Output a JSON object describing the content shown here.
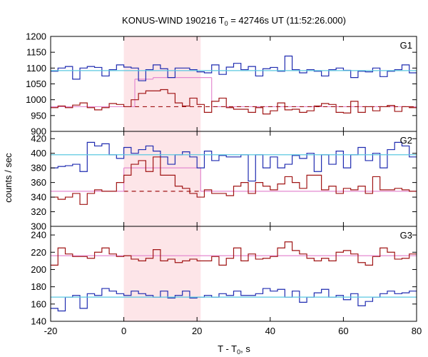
{
  "chart_data": {
    "type": "line",
    "title_main": "KONUS-WIND 190216 T",
    "title_sub": "0",
    "title_rest": " = 42746s UT (11:52:26.000)",
    "xlabel_main": "T - T",
    "xlabel_sub": "0",
    "xlabel_rest": ", s",
    "ylabel": "counts / sec",
    "xlim": [
      -20,
      80
    ],
    "x_ticks": [
      -20,
      0,
      20,
      40,
      60,
      80
    ],
    "x_tick_labels": [
      "-20",
      "0",
      "20",
      "40",
      "60",
      "80"
    ],
    "highlight_interval": [
      0,
      21
    ],
    "colors": {
      "high_channel": "#1f2bb0",
      "low_channel": "#a01515",
      "fit": "#5bc8e0",
      "model": "#e48ad0",
      "highlight": "#fde5e8"
    },
    "panels": [
      {
        "label": "G1",
        "ylim": [
          900,
          1200
        ],
        "y_ticks": [
          900,
          950,
          1000,
          1050,
          1100,
          1150,
          1200
        ],
        "y_tick_labels": [
          "900",
          "950",
          "1000",
          "1050",
          "1100",
          "1150",
          "1200"
        ],
        "series": [
          {
            "role": "high",
            "step": 2.0,
            "x0": -20,
            "values": [
              1090,
              1100,
              1105,
              1065,
              1100,
              1105,
              1102,
              1075,
              1095,
              1110,
              1103,
              1100,
              1060,
              1095,
              1110,
              1098,
              1070,
              1100,
              1100,
              1095,
              1088,
              1085,
              1110,
              1080,
              1103,
              1115,
              1095,
              1105,
              1075,
              1098,
              1102,
              1090,
              1138,
              1095,
              1085,
              1095,
              1090,
              1075,
              1095,
              1100,
              1093,
              1070,
              1090,
              1088,
              1100,
              1073,
              1090,
              1095,
              1110,
              1085
            ]
          },
          {
            "role": "low",
            "step": 2.0,
            "x0": -20,
            "values": [
              975,
              980,
              975,
              983,
              990,
              975,
              968,
              975,
              988,
              985,
              978,
              1000,
              1020,
              1028,
              1028,
              1032,
              1020,
              990,
              980,
              1005,
              985,
              960,
              995,
              1005,
              975,
              970,
              970,
              960,
              975,
              955,
              965,
              990,
              968,
              970,
              960,
              965,
              980,
              988,
              985,
              960,
              958,
              995,
              960,
              978,
              965,
              978,
              982,
              963,
              978,
              975
            ]
          },
          {
            "role": "fit",
            "x": [
              -20,
              80
            ],
            "values": [
              1092,
              1092
            ]
          }
        ],
        "model_levels": [
          {
            "x": [
              -20,
              3
            ],
            "value": 978,
            "style": "solid"
          },
          {
            "x": [
              3,
              8
            ],
            "value": 1065,
            "style": "solid"
          },
          {
            "x": [
              8,
              24
            ],
            "value": 1070,
            "style": "solid"
          },
          {
            "x": [
              24,
              80
            ],
            "value": 978,
            "style": "solid"
          },
          {
            "x": [
              3,
              80
            ],
            "value": 978,
            "style": "dashed"
          }
        ]
      },
      {
        "label": "G2",
        "ylim": [
          300,
          430
        ],
        "y_ticks": [
          300,
          320,
          340,
          360,
          380,
          400,
          420
        ],
        "y_tick_labels": [
          "300",
          "320",
          "340",
          "360",
          "380",
          "400",
          "420"
        ],
        "series": [
          {
            "role": "high",
            "step": 2.0,
            "x0": -20,
            "values": [
              380,
              382,
              383,
              385,
              375,
              415,
              410,
              413,
              398,
              393,
              408,
              400,
              405,
              410,
              403,
              395,
              385,
              398,
              402,
              395,
              380,
              403,
              390,
              397,
              395,
              395,
              398,
              362,
              398,
              380,
              395,
              380,
              385,
              397,
              393,
              400,
              375,
              398,
              385,
              403,
              380,
              398,
              408,
              390,
              400,
              380,
              405,
              415,
              410,
              395
            ]
          },
          {
            "role": "low",
            "step": 2.0,
            "x0": -20,
            "values": [
              340,
              337,
              340,
              345,
              330,
              345,
              350,
              348,
              348,
              360,
              370,
              385,
              390,
              375,
              395,
              370,
              370,
              355,
              352,
              345,
              340,
              350,
              345,
              345,
              342,
              355,
              360,
              345,
              360,
              355,
              350,
              358,
              368,
              360,
              352,
              370,
              370,
              350,
              355,
              345,
              352,
              350,
              355,
              345,
              368,
              350,
              350,
              352,
              350,
              348
            ]
          },
          {
            "role": "fit",
            "x": [
              -20,
              80
            ],
            "values": [
              398,
              398
            ]
          }
        ],
        "model_levels": [
          {
            "x": [
              -20,
              0
            ],
            "value": 348,
            "style": "solid"
          },
          {
            "x": [
              0,
              21
            ],
            "value": 380,
            "style": "solid"
          },
          {
            "x": [
              21,
              80
            ],
            "value": 348,
            "style": "solid"
          },
          {
            "x": [
              0,
              21
            ],
            "value": 348,
            "style": "dashed"
          }
        ]
      },
      {
        "label": "G3",
        "ylim": [
          140,
          250
        ],
        "y_ticks": [
          140,
          160,
          180,
          200,
          220,
          240
        ],
        "y_tick_labels": [
          "140",
          "160",
          "180",
          "200",
          "220",
          "240"
        ],
        "series": [
          {
            "role": "high",
            "step": 2.0,
            "x0": -20,
            "values": [
              155,
              152,
              168,
              170,
              155,
              172,
              170,
              178,
              175,
              172,
              170,
              175,
              172,
              170,
              168,
              175,
              167,
              170,
              175,
              167,
              168,
              170,
              168,
              172,
              170,
              175,
              170,
              170,
              172,
              178,
              175,
              177,
              168,
              175,
              162,
              168,
              173,
              177,
              168,
              170,
              165,
              172,
              158,
              163,
              168,
              172,
              175,
              172,
              173,
              175
            ]
          },
          {
            "role": "low",
            "step": 2.0,
            "x0": -20,
            "values": [
              205,
              225,
              218,
              215,
              215,
              213,
              220,
              225,
              218,
              215,
              216,
              212,
              210,
              213,
              223,
              210,
              212,
              208,
              210,
              212,
              210,
              210,
              215,
              205,
              213,
              225,
              210,
              218,
              212,
              213,
              215,
              225,
              232,
              222,
              218,
              213,
              210,
              213,
              210,
              220,
              222,
              218,
              208,
              205,
              215,
              225,
              220,
              212,
              213,
              218
            ]
          },
          {
            "role": "fit",
            "x": [
              -20,
              80
            ],
            "values": [
              168,
              168
            ]
          }
        ],
        "model_levels": [
          {
            "x": [
              -20,
              80
            ],
            "value": 216,
            "style": "solid"
          }
        ]
      }
    ]
  }
}
